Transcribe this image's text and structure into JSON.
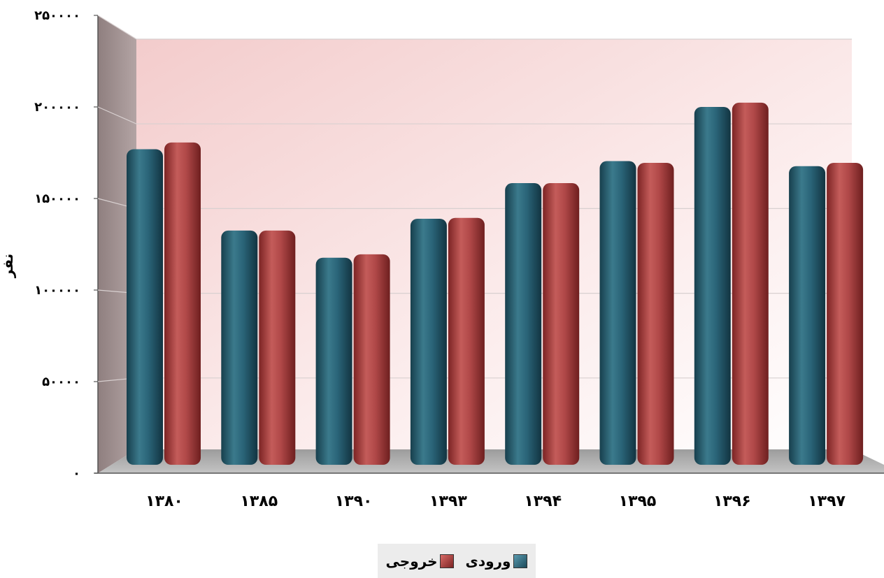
{
  "chart_data": {
    "type": "bar",
    "title": "",
    "xlabel": "",
    "ylabel": "نفر",
    "categories": [
      "۱۳۸۰",
      "۱۳۸۵",
      "۱۳۹۰",
      "۱۳۹۳",
      "۱۳۹۴",
      "۱۳۹۵",
      "۱۳۹۶",
      "۱۳۹۷"
    ],
    "series": [
      {
        "name": "ورودی",
        "color": "#2a6478",
        "values": [
          185000,
          137000,
          121000,
          144000,
          165000,
          178000,
          210000,
          175000
        ]
      },
      {
        "name": "خروجی",
        "color": "#b04848",
        "values": [
          189000,
          137000,
          123000,
          144500,
          165000,
          177000,
          212500,
          177000
        ]
      }
    ],
    "ylim": [
      0,
      250000
    ],
    "yticks": [
      0,
      50000,
      100000,
      150000,
      200000,
      250000
    ],
    "ytick_labels": [
      "۰",
      "۵۰۰۰۰",
      "۱۰۰۰۰۰",
      "۱۵۰۰۰۰",
      "۲۰۰۰۰۰",
      "۲۵۰۰۰۰"
    ],
    "grid": true,
    "legend_position": "bottom",
    "style": "3d-cylinder"
  }
}
